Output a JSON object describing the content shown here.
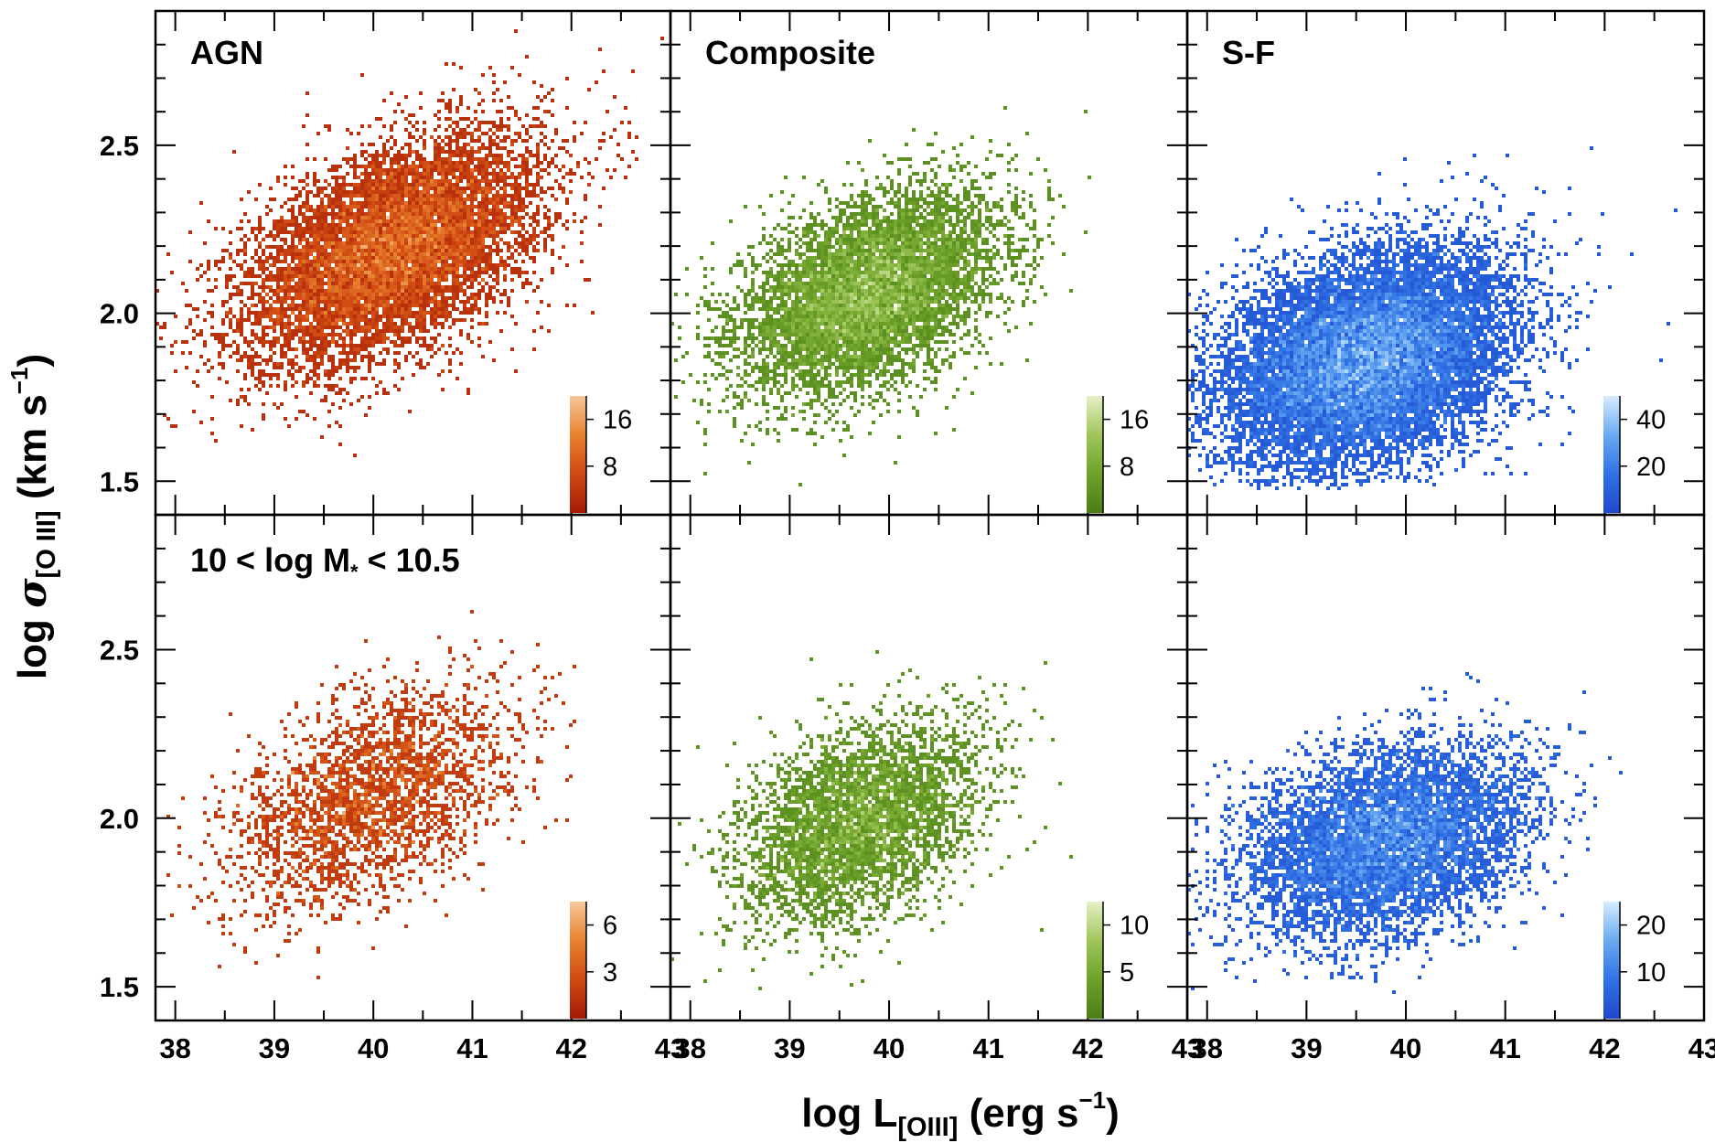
{
  "chart_data": {
    "type": "heatmap",
    "layout": {
      "rows": 2,
      "cols": 3
    },
    "xlabel": {
      "main": "log L",
      "sub": "[OIII]",
      "unit_pre": " (erg s",
      "unit_sup": "−1",
      "unit_post": ")"
    },
    "ylabel": {
      "main": "log ",
      "sigma": "σ",
      "sub": "[O III]",
      "unit_pre": " (km s",
      "unit_sup": "−1",
      "unit_post": ")"
    },
    "xlim": [
      37.8,
      43.0
    ],
    "ylim": [
      1.4,
      2.9
    ],
    "x_ticks": [
      "38",
      "39",
      "40",
      "41",
      "42",
      "43"
    ],
    "y_ticks": [
      "1.5",
      "2.0",
      "2.5"
    ],
    "columns": [
      {
        "name": "AGN",
        "colormap": [
          "#a41a06",
          "#cf4a12",
          "#e8822e",
          "#f7c79a"
        ]
      },
      {
        "name": "Composite",
        "colormap": [
          "#4a7e16",
          "#6ea22a",
          "#a0c55a",
          "#e6f0c8"
        ]
      },
      {
        "name": "S-F",
        "colormap": [
          "#1e48cc",
          "#3072e4",
          "#6aaaf2",
          "#d6ecfe"
        ]
      }
    ],
    "rows": [
      {
        "label": "",
        "colorbar_ticks": [
          [
            "16",
            "8"
          ],
          [
            "16",
            "8"
          ],
          [
            "40",
            "20"
          ]
        ]
      },
      {
        "label_pre": "10 < log M",
        "label_sub": "*",
        "label_post": " < 10.5",
        "colorbar_ticks": [
          [
            "6",
            "3"
          ],
          [
            "10",
            "5"
          ],
          [
            "20",
            "10"
          ]
        ]
      }
    ],
    "distributions": [
      [
        {
          "center": [
            40.2,
            2.19
          ],
          "sigma_x": 0.75,
          "sigma_y": 0.17,
          "rho": 0.5,
          "n": 9000,
          "ymin": 1.48
        },
        {
          "center": [
            39.8,
            2.06
          ],
          "sigma_x": 0.65,
          "sigma_y": 0.15,
          "rho": 0.45,
          "n": 7000,
          "ymin": 1.48
        },
        {
          "center": [
            39.6,
            1.86
          ],
          "sigma_x": 0.72,
          "sigma_y": 0.16,
          "rho": 0.3,
          "n": 13000,
          "ymin": 1.48
        }
      ],
      [
        {
          "center": [
            40.0,
            2.07
          ],
          "sigma_x": 0.7,
          "sigma_y": 0.16,
          "rho": 0.45,
          "n": 2600,
          "ymin": 1.48
        },
        {
          "center": [
            39.7,
            1.98
          ],
          "sigma_x": 0.6,
          "sigma_y": 0.15,
          "rho": 0.4,
          "n": 4000,
          "ymin": 1.48
        },
        {
          "center": [
            39.8,
            1.93
          ],
          "sigma_x": 0.7,
          "sigma_y": 0.14,
          "rho": 0.3,
          "n": 6500,
          "ymin": 1.48
        }
      ]
    ]
  }
}
